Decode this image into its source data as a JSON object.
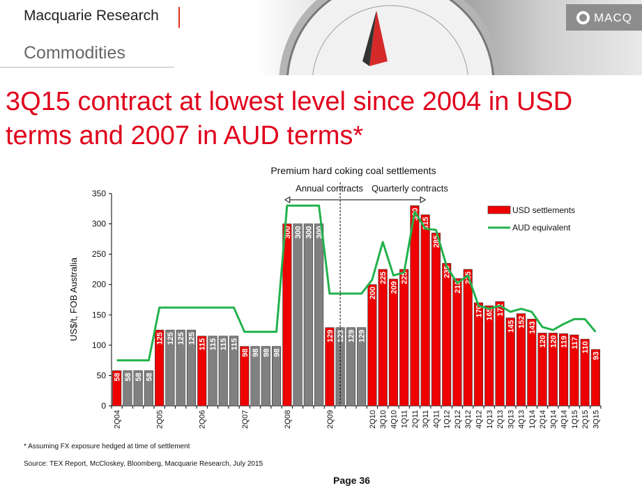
{
  "header": {
    "brand": "Macquarie Research",
    "section": "Commodities",
    "logo_text": "MACQ"
  },
  "headline": "3Q15 contract at lowest level since 2004 in USD terms and 2007 in AUD terms*",
  "colors": {
    "usd_bar": "#ee0000",
    "annual_bar": "#808080",
    "aud_line": "#22b24c",
    "headline": "#e0001b"
  },
  "chart_data": {
    "type": "bar",
    "title": "Premium hard coking coal settlements",
    "ylabel": "US$/t, FOB Australia",
    "xlabel": "",
    "ylim": [
      0,
      350
    ],
    "yticks": [
      0,
      50,
      100,
      150,
      200,
      250,
      300,
      350
    ],
    "annotations": {
      "annual": "Annual contracts",
      "quarterly": "Quarterly contracts"
    },
    "legend": {
      "position": "top-right",
      "entries": [
        "USD settlements",
        "AUD equivalent"
      ]
    },
    "x_tick_labels": [
      "2Q04",
      "",
      "",
      "",
      "2Q05",
      "",
      "",
      "",
      "2Q06",
      "",
      "",
      "",
      "2Q07",
      "",
      "",
      "",
      "2Q08",
      "",
      "",
      "",
      "2Q09",
      "",
      "",
      "",
      "2Q10",
      "3Q10",
      "4Q10",
      "1Q11",
      "2Q11",
      "3Q11",
      "4Q11",
      "1Q12",
      "2Q12",
      "3Q12",
      "4Q12",
      "1Q13",
      "2Q13",
      "3Q13",
      "4Q13",
      "1Q14",
      "2Q14",
      "3Q14",
      "4Q14",
      "1Q15",
      "2Q15",
      "3Q15"
    ],
    "series": [
      {
        "name": "USD settlements",
        "values": [
          58,
          58,
          58,
          58,
          125,
          125,
          125,
          125,
          115,
          115,
          115,
          115,
          98,
          98,
          98,
          98,
          300,
          300,
          300,
          300,
          129,
          129,
          129,
          129,
          200,
          225,
          209,
          225,
          330,
          315,
          285,
          235,
          210,
          225,
          170,
          165,
          172,
          145,
          152,
          143,
          120,
          120,
          119,
          117,
          110,
          93
        ],
        "settlement": [
          true,
          false,
          false,
          false,
          true,
          false,
          false,
          false,
          true,
          false,
          false,
          false,
          true,
          false,
          false,
          false,
          true,
          false,
          false,
          false,
          true,
          false,
          false,
          false,
          true,
          true,
          true,
          true,
          true,
          true,
          true,
          true,
          true,
          true,
          true,
          true,
          true,
          true,
          true,
          true,
          true,
          true,
          true,
          true,
          true,
          true
        ]
      },
      {
        "name": "AUD equivalent",
        "values": [
          75,
          75,
          75,
          75,
          162,
          162,
          162,
          162,
          162,
          162,
          162,
          162,
          122,
          122,
          122,
          122,
          330,
          330,
          330,
          330,
          185,
          185,
          185,
          185,
          208,
          270,
          215,
          220,
          320,
          292,
          290,
          230,
          202,
          215,
          165,
          160,
          165,
          155,
          160,
          155,
          130,
          125,
          135,
          143,
          143,
          122
        ]
      }
    ]
  },
  "footnote": "* Assuming FX exposure hedged at time of settlement",
  "source": "Source: TEX Report, McCloskey, Bloomberg, Macquarie Research, July 2015",
  "page": "Page 36"
}
